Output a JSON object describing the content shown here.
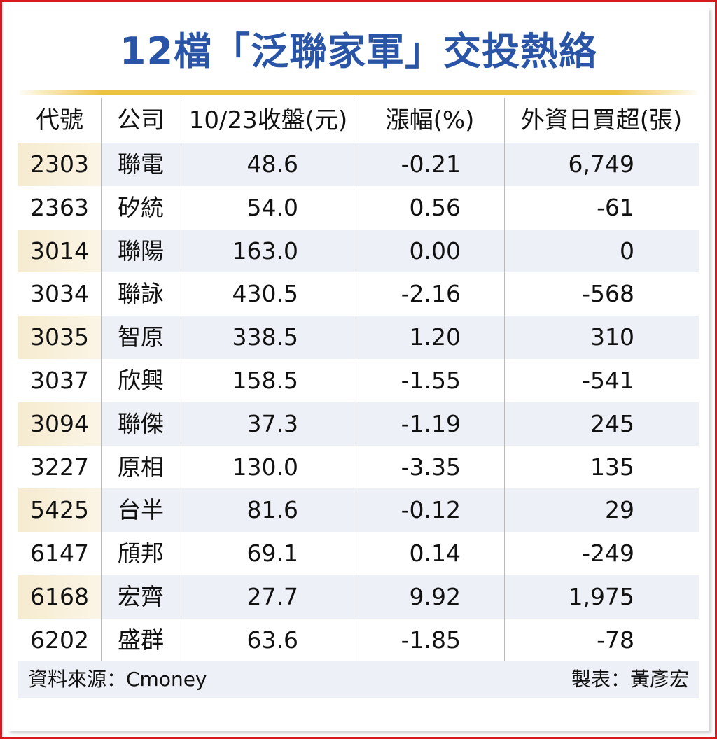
{
  "title": "12檔「泛聯家軍」交投熱絡",
  "colors": {
    "title": "#2a55a6",
    "accent_line": "#ecc340",
    "border": "#d71a21",
    "row_shade": "#edf0f6",
    "code_shade": "#f6ebd0"
  },
  "chart_data": {
    "type": "table",
    "title": "12檔「泛聯家軍」交投熱絡",
    "columns": [
      "代號",
      "公司",
      "10/23收盤(元)",
      "漲幅(%)",
      "外資日買超(張)"
    ],
    "rows": [
      [
        "2303",
        "聯電",
        "48.6",
        "-0.21",
        "6,749"
      ],
      [
        "2363",
        "矽統",
        "54.0",
        "0.56",
        "-61"
      ],
      [
        "3014",
        "聯陽",
        "163.0",
        "0.00",
        "0"
      ],
      [
        "3034",
        "聯詠",
        "430.5",
        "-2.16",
        "-568"
      ],
      [
        "3035",
        "智原",
        "338.5",
        "1.20",
        "310"
      ],
      [
        "3037",
        "欣興",
        "158.5",
        "-1.55",
        "-541"
      ],
      [
        "3094",
        "聯傑",
        "37.3",
        "-1.19",
        "245"
      ],
      [
        "3227",
        "原相",
        "130.0",
        "-3.35",
        "135"
      ],
      [
        "5425",
        "台半",
        "81.6",
        "-0.12",
        "29"
      ],
      [
        "6147",
        "頎邦",
        "69.1",
        "0.14",
        "-249"
      ],
      [
        "6168",
        "宏齊",
        "27.7",
        "9.92",
        "1,975"
      ],
      [
        "6202",
        "盛群",
        "63.6",
        "-1.85",
        "-78"
      ]
    ]
  },
  "footer": {
    "source": "資料來源：Cmoney",
    "maker": "製表：黃彥宏"
  }
}
